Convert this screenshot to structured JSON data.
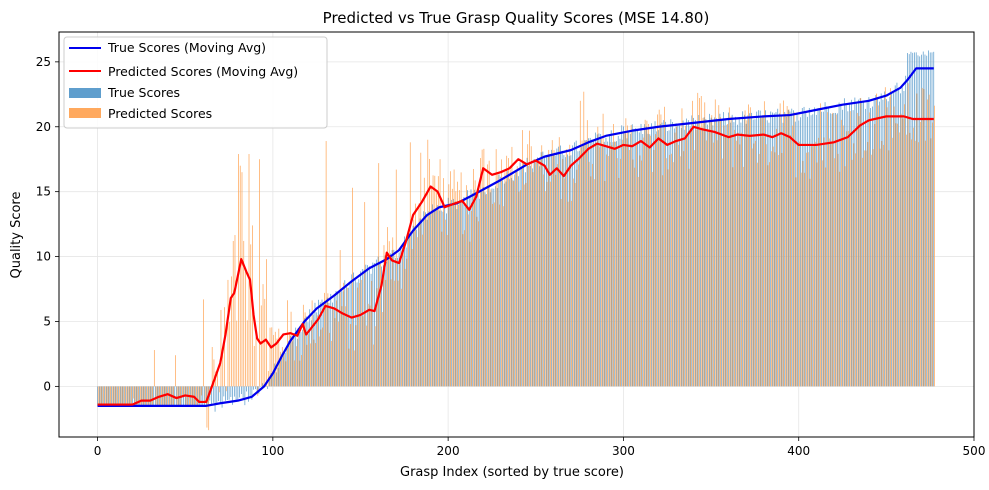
{
  "chart_data": {
    "type": "bar",
    "title": "Predicted vs True Grasp Quality Scores (MSE 14.80)",
    "xlabel": "Grasp Index (sorted by true score)",
    "ylabel": "Quality Score",
    "xlim": [
      -22,
      500
    ],
    "ylim": [
      -3.9,
      27.3
    ],
    "x_ticks": [
      0,
      100,
      200,
      300,
      400,
      500
    ],
    "y_ticks": [
      0,
      5,
      10,
      15,
      20,
      25
    ],
    "grid": true,
    "legend_position": "top-left",
    "n_points": 478,
    "series": [
      {
        "name": "True Scores (Moving Avg)",
        "kind": "line",
        "color": "#0000ee",
        "points": [
          [
            0,
            -1.5
          ],
          [
            40,
            -1.5
          ],
          [
            62,
            -1.5
          ],
          [
            70,
            -1.3
          ],
          [
            80,
            -1.1
          ],
          [
            88,
            -0.8
          ],
          [
            95,
            0
          ],
          [
            100,
            1
          ],
          [
            105,
            2.3
          ],
          [
            110,
            3.5
          ],
          [
            118,
            5
          ],
          [
            125,
            6
          ],
          [
            135,
            7
          ],
          [
            145,
            8.1
          ],
          [
            155,
            9.1
          ],
          [
            165,
            9.8
          ],
          [
            172,
            10.5
          ],
          [
            180,
            12
          ],
          [
            188,
            13.2
          ],
          [
            195,
            13.8
          ],
          [
            205,
            14.1
          ],
          [
            215,
            14.8
          ],
          [
            230,
            15.9
          ],
          [
            245,
            17.1
          ],
          [
            255,
            17.7
          ],
          [
            270,
            18.2
          ],
          [
            280,
            18.8
          ],
          [
            290,
            19.3
          ],
          [
            305,
            19.7
          ],
          [
            320,
            20.0
          ],
          [
            340,
            20.3
          ],
          [
            360,
            20.6
          ],
          [
            380,
            20.8
          ],
          [
            395,
            20.9
          ],
          [
            410,
            21.3
          ],
          [
            425,
            21.7
          ],
          [
            440,
            22.0
          ],
          [
            450,
            22.4
          ],
          [
            458,
            23.0
          ],
          [
            462,
            23.6
          ],
          [
            467,
            24.5
          ],
          [
            477,
            24.5
          ]
        ]
      },
      {
        "name": "Predicted Scores (Moving Avg)",
        "kind": "line",
        "color": "#ff0000",
        "points": [
          [
            0,
            -1.4
          ],
          [
            20,
            -1.4
          ],
          [
            25,
            -1.1
          ],
          [
            30,
            -1.1
          ],
          [
            35,
            -0.8
          ],
          [
            40,
            -0.6
          ],
          [
            45,
            -0.9
          ],
          [
            50,
            -0.7
          ],
          [
            55,
            -0.8
          ],
          [
            58,
            -1.2
          ],
          [
            62,
            -1.2
          ],
          [
            65,
            -0.1
          ],
          [
            70,
            1.8
          ],
          [
            73,
            4
          ],
          [
            76,
            6.8
          ],
          [
            78,
            7.2
          ],
          [
            80,
            8.5
          ],
          [
            82,
            9.8
          ],
          [
            85,
            8.8
          ],
          [
            87,
            8.2
          ],
          [
            89,
            5.5
          ],
          [
            91,
            3.7
          ],
          [
            93,
            3.3
          ],
          [
            96,
            3.6
          ],
          [
            99,
            3.0
          ],
          [
            102,
            3.3
          ],
          [
            106,
            4.0
          ],
          [
            110,
            4.1
          ],
          [
            114,
            3.9
          ],
          [
            117,
            4.8
          ],
          [
            119,
            4.0
          ],
          [
            122,
            4.5
          ],
          [
            126,
            5.2
          ],
          [
            130,
            6.2
          ],
          [
            135,
            6.0
          ],
          [
            140,
            5.6
          ],
          [
            145,
            5.3
          ],
          [
            150,
            5.5
          ],
          [
            155,
            5.9
          ],
          [
            158,
            5.8
          ],
          [
            162,
            7.8
          ],
          [
            165,
            10.3
          ],
          [
            168,
            9.7
          ],
          [
            172,
            9.5
          ],
          [
            176,
            11.2
          ],
          [
            180,
            13.2
          ],
          [
            185,
            14.2
          ],
          [
            190,
            15.4
          ],
          [
            194,
            15.0
          ],
          [
            198,
            13.8
          ],
          [
            202,
            14.0
          ],
          [
            208,
            14.3
          ],
          [
            212,
            13.6
          ],
          [
            216,
            14.6
          ],
          [
            220,
            16.8
          ],
          [
            225,
            16.3
          ],
          [
            230,
            16.5
          ],
          [
            235,
            16.8
          ],
          [
            240,
            17.5
          ],
          [
            245,
            17.1
          ],
          [
            250,
            17.4
          ],
          [
            255,
            17.0
          ],
          [
            258,
            16.3
          ],
          [
            262,
            16.8
          ],
          [
            266,
            16.2
          ],
          [
            270,
            17.0
          ],
          [
            275,
            17.6
          ],
          [
            280,
            18.3
          ],
          [
            285,
            18.7
          ],
          [
            290,
            18.5
          ],
          [
            295,
            18.3
          ],
          [
            300,
            18.6
          ],
          [
            305,
            18.5
          ],
          [
            310,
            18.9
          ],
          [
            315,
            18.4
          ],
          [
            320,
            19.1
          ],
          [
            325,
            18.6
          ],
          [
            330,
            18.9
          ],
          [
            335,
            19.1
          ],
          [
            340,
            20.0
          ],
          [
            345,
            19.8
          ],
          [
            352,
            19.6
          ],
          [
            360,
            19.2
          ],
          [
            365,
            19.4
          ],
          [
            372,
            19.3
          ],
          [
            380,
            19.4
          ],
          [
            385,
            19.2
          ],
          [
            390,
            19.5
          ],
          [
            395,
            19.2
          ],
          [
            400,
            18.6
          ],
          [
            410,
            18.6
          ],
          [
            420,
            18.8
          ],
          [
            428,
            19.2
          ],
          [
            435,
            20.1
          ],
          [
            440,
            20.5
          ],
          [
            450,
            20.8
          ],
          [
            460,
            20.8
          ],
          [
            465,
            20.6
          ],
          [
            470,
            20.6
          ],
          [
            477,
            20.6
          ]
        ]
      },
      {
        "name": "True Scores",
        "kind": "bar",
        "color": "#5f9ecd",
        "trend": "follows the blue moving average with small noise; values near -1.5 for indices 0-65, rising to about 25.8 at index 477"
      },
      {
        "name": "Predicted Scores",
        "kind": "bar",
        "color": "#ffa95e",
        "highlights": [
          [
            32,
            2.8
          ],
          [
            44,
            2.4
          ],
          [
            60,
            6.7
          ],
          [
            72,
            6.1
          ],
          [
            74,
            8.2
          ],
          [
            77,
            11.2
          ],
          [
            80,
            17.9
          ],
          [
            81,
            17.0
          ],
          [
            82,
            16.5
          ],
          [
            84,
            9.0
          ],
          [
            86,
            17.9
          ],
          [
            88,
            12.4
          ],
          [
            92,
            17.5
          ],
          [
            96,
            9.8
          ],
          [
            118,
            5.7
          ],
          [
            123,
            3.6
          ],
          [
            130,
            18.9
          ],
          [
            138,
            10.5
          ],
          [
            145,
            15.3
          ],
          [
            152,
            14.2
          ],
          [
            160,
            17.2
          ],
          [
            170,
            16.7
          ],
          [
            178,
            18.8
          ],
          [
            184,
            18.0
          ],
          [
            188,
            19.0
          ],
          [
            195,
            17.5
          ],
          [
            210,
            15.5
          ],
          [
            220,
            18.3
          ],
          [
            232,
            16.5
          ],
          [
            247,
            18.5
          ],
          [
            260,
            18.2
          ],
          [
            275,
            22.0
          ],
          [
            277,
            22.7
          ],
          [
            285,
            20.0
          ],
          [
            300,
            19.5
          ],
          [
            330,
            20.0
          ],
          [
            348,
            19.8
          ],
          [
            370,
            20.5
          ],
          [
            372,
            21.5
          ],
          [
            389,
            21.8
          ],
          [
            412,
            21.8
          ],
          [
            440,
            21.1
          ],
          [
            450,
            21.5
          ],
          [
            458,
            21.0
          ]
        ]
      }
    ]
  }
}
